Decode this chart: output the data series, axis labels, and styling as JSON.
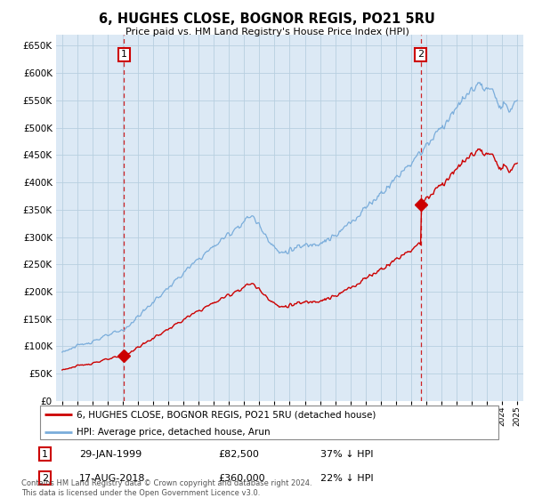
{
  "title": "6, HUGHES CLOSE, BOGNOR REGIS, PO21 5RU",
  "subtitle": "Price paid vs. HM Land Registry's House Price Index (HPI)",
  "ylim": [
    0,
    670000
  ],
  "yticks": [
    0,
    50000,
    100000,
    150000,
    200000,
    250000,
    300000,
    350000,
    400000,
    450000,
    500000,
    550000,
    600000,
    650000
  ],
  "sale1_price": 82500,
  "sale2_price": 360000,
  "sale1_year": 1999.08,
  "sale2_year": 2018.63,
  "legend_property": "6, HUGHES CLOSE, BOGNOR REGIS, PO21 5RU (detached house)",
  "legend_hpi": "HPI: Average price, detached house, Arun",
  "property_color": "#cc0000",
  "hpi_color": "#7aaddb",
  "plot_bg_color": "#dce9f5",
  "grid_color": "#b8cfe0",
  "annotation_edge_color": "#cc0000",
  "footer": "Contains HM Land Registry data © Crown copyright and database right 2024.\nThis data is licensed under the Open Government Licence v3.0."
}
